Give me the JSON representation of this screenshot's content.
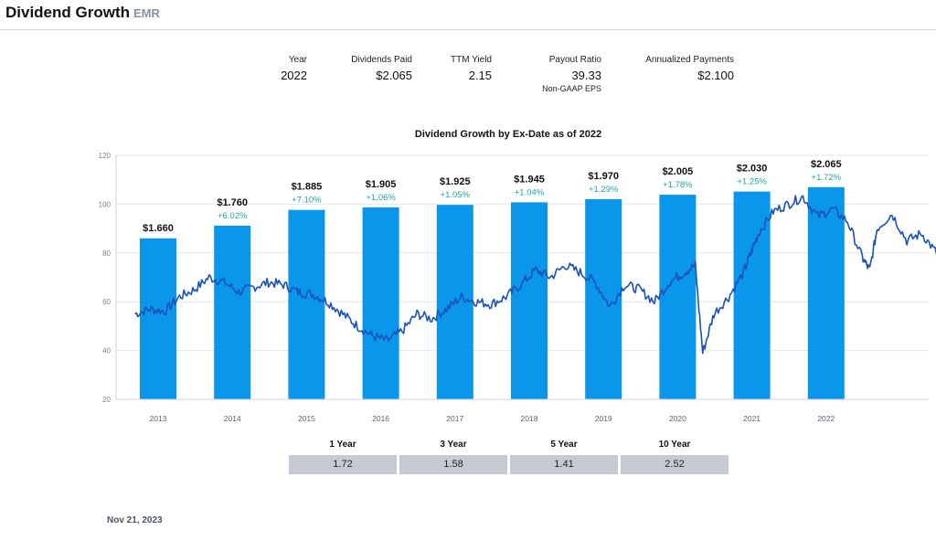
{
  "header": {
    "title": "Dividend Growth",
    "ticker": "EMR"
  },
  "stats": [
    {
      "label": "Year",
      "value": "2022",
      "sub": ""
    },
    {
      "label": "Dividends Paid",
      "value": "$2.065",
      "sub": ""
    },
    {
      "label": "TTM Yield",
      "value": "2.15",
      "sub": ""
    },
    {
      "label": "Payout Ratio",
      "value": "39.33",
      "sub": "Non-GAAP EPS"
    },
    {
      "label": "Annualized Payments",
      "value": "$2.100",
      "sub": ""
    }
  ],
  "chart_data": {
    "type": "bar",
    "title": "Dividend Growth by Ex-Date as of 2022",
    "categories": [
      "2013",
      "2014",
      "2015",
      "2016",
      "2017",
      "2018",
      "2019",
      "2020",
      "2021",
      "2022"
    ],
    "series": [
      {
        "values": [
          1.66,
          1.76,
          1.885,
          1.905,
          1.925,
          1.945,
          1.97,
          2.005,
          2.03,
          2.065
        ]
      }
    ],
    "bar_labels": [
      "$1.660",
      "$1.760",
      "$1.885",
      "$1.905",
      "$1.925",
      "$1.945",
      "$1.970",
      "$2.005",
      "$2.030",
      "$2.065"
    ],
    "growth_labels": [
      "",
      "+6.02%",
      "+7.10%",
      "+1.06%",
      "+1.05%",
      "+1.04%",
      "+1.29%",
      "+1.78%",
      "+1.25%",
      "+1.72%"
    ],
    "price_line": {
      "points": [
        [
          2012.6,
          55
        ],
        [
          2012.8,
          57
        ],
        [
          2013.0,
          56
        ],
        [
          2013.2,
          62
        ],
        [
          2013.4,
          65
        ],
        [
          2013.6,
          70
        ],
        [
          2013.8,
          68
        ],
        [
          2014.0,
          64
        ],
        [
          2014.2,
          66
        ],
        [
          2014.4,
          68
        ],
        [
          2014.6,
          67
        ],
        [
          2014.8,
          64
        ],
        [
          2015.0,
          63
        ],
        [
          2015.2,
          60
        ],
        [
          2015.4,
          55
        ],
        [
          2015.6,
          50
        ],
        [
          2015.8,
          46
        ],
        [
          2016.0,
          44
        ],
        [
          2016.2,
          48
        ],
        [
          2016.4,
          55
        ],
        [
          2016.6,
          53
        ],
        [
          2016.8,
          57
        ],
        [
          2017.0,
          62
        ],
        [
          2017.2,
          60
        ],
        [
          2017.4,
          59
        ],
        [
          2017.6,
          62
        ],
        [
          2017.8,
          67
        ],
        [
          2018.0,
          73
        ],
        [
          2018.2,
          70
        ],
        [
          2018.4,
          75
        ],
        [
          2018.6,
          72
        ],
        [
          2018.8,
          68
        ],
        [
          2019.0,
          58
        ],
        [
          2019.2,
          67
        ],
        [
          2019.4,
          65
        ],
        [
          2019.6,
          60
        ],
        [
          2019.8,
          68
        ],
        [
          2020.0,
          72
        ],
        [
          2020.15,
          75
        ],
        [
          2020.25,
          39
        ],
        [
          2020.4,
          55
        ],
        [
          2020.6,
          62
        ],
        [
          2020.8,
          72
        ],
        [
          2020.9,
          80
        ],
        [
          2021.0,
          88
        ],
        [
          2021.2,
          97
        ],
        [
          2021.4,
          100
        ],
        [
          2021.6,
          103
        ],
        [
          2021.8,
          95
        ],
        [
          2022.0,
          98
        ],
        [
          2022.2,
          93
        ],
        [
          2022.4,
          78
        ],
        [
          2022.5,
          73
        ],
        [
          2022.6,
          90
        ],
        [
          2022.8,
          96
        ],
        [
          2023.0,
          85
        ],
        [
          2023.2,
          88
        ],
        [
          2023.4,
          80
        ],
        [
          2023.6,
          95
        ],
        [
          2023.75,
          100
        ],
        [
          2023.9,
          90
        ],
        [
          2023.95,
          88
        ]
      ]
    },
    "y_ticks": [
      20,
      40,
      60,
      80,
      100,
      120
    ],
    "ylim": [
      20,
      120
    ],
    "grid": true,
    "legend": "none"
  },
  "cagr": [
    {
      "label": "1 Year",
      "value": "1.72"
    },
    {
      "label": "3 Year",
      "value": "1.58"
    },
    {
      "label": "5 Year",
      "value": "1.41"
    },
    {
      "label": "10 Year",
      "value": "2.52"
    }
  ],
  "as_of_date": "Nov 21, 2023",
  "colors": {
    "bar": "#0a96ea",
    "line": "#1a52b5",
    "growth": "#1ea7a0",
    "cagr_cell": "#c8cad3"
  }
}
